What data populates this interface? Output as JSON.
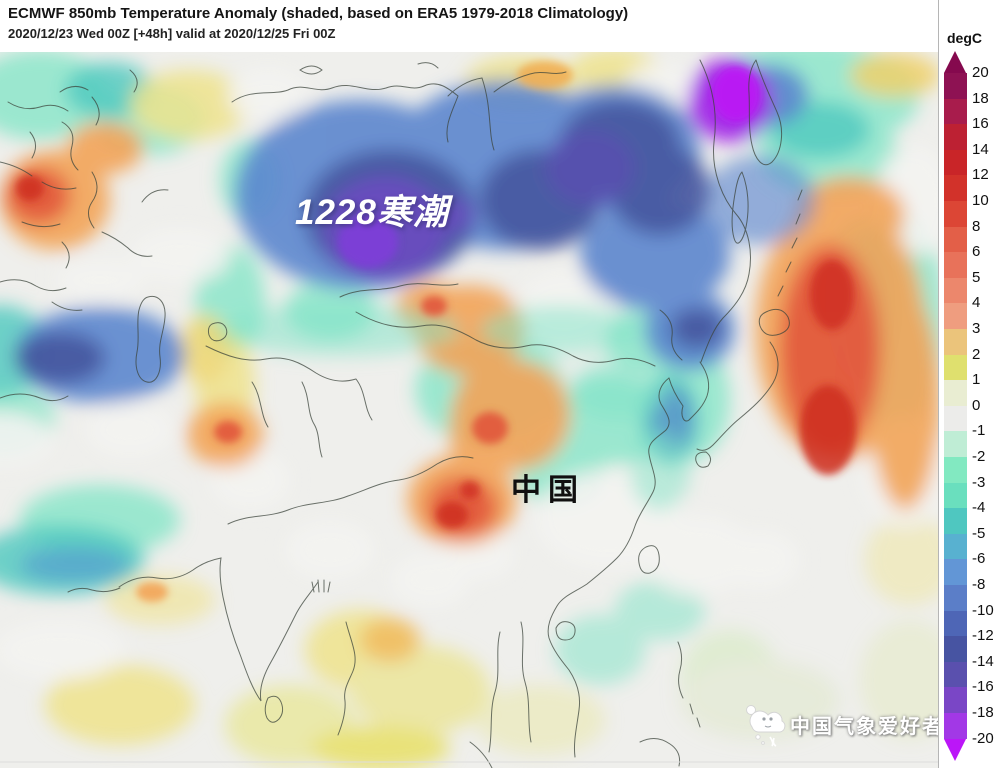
{
  "header": {
    "title": "ECMWF 850mb Temperature Anomaly (shaded, based on ERA5 1979-2018 Climatology)",
    "subtitle": "2020/12/23 Wed 00Z [+48h] valid at 2020/12/25 Fri 00Z"
  },
  "colorbar": {
    "unit_label": "degC",
    "ticks": [
      "20",
      "18",
      "16",
      "14",
      "12",
      "10",
      "8",
      "6",
      "5",
      "4",
      "3",
      "2",
      "1",
      "0",
      "-1",
      "-2",
      "-3",
      "-4",
      "-5",
      "-6",
      "-8",
      "-10",
      "-12",
      "-14",
      "-16",
      "-18",
      "-20"
    ],
    "segment_colors": [
      "#8E1253",
      "#A81C4C",
      "#BD2133",
      "#C92528",
      "#D2322A",
      "#DC4635",
      "#E35F48",
      "#E8725A",
      "#EC876C",
      "#EF9D7F",
      "#EBC47B",
      "#DFE06E",
      "#E9EDD2",
      "#ECECEA",
      "#BFEDD5",
      "#82E9C1",
      "#6ADFBE",
      "#4FC7C0",
      "#58B1D0",
      "#6296D6",
      "#5B7EC8",
      "#4E66B6",
      "#4754A2",
      "#5A50AE",
      "#7A46C6",
      "#A238E6"
    ],
    "top_arrow_color": "#85094E",
    "bottom_arrow_color": "#BB16F8"
  },
  "map": {
    "annotations": {
      "cold_wave_label": "1228寒潮",
      "china_label": "中国"
    },
    "watermark_text": "中国气象爱好者"
  }
}
